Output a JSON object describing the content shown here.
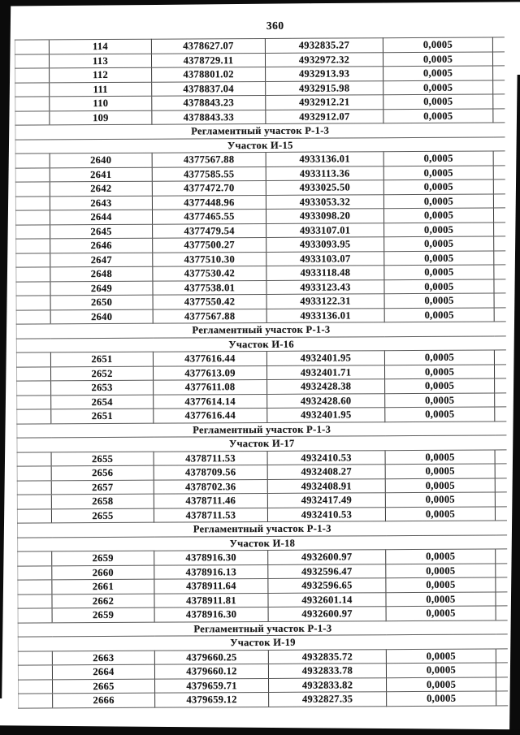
{
  "page": {
    "number": "360"
  },
  "colors": {
    "ink": "#161616",
    "grid_line": "#595959",
    "column_line": "#383838",
    "faint_outer_line": "#b4b4b4",
    "scan_edge_black": "#0b0b0b",
    "paper": "#ffffff"
  },
  "table": {
    "sections": [
      {
        "type": "rows",
        "rows": [
          [
            "114",
            "4378627.07",
            "4932835.27",
            "0,0005"
          ],
          [
            "113",
            "4378729.11",
            "4932972.32",
            "0,0005"
          ],
          [
            "112",
            "4378801.02",
            "4932913.93",
            "0,0005"
          ],
          [
            "111",
            "4378837.04",
            "4932915.98",
            "0,0005"
          ],
          [
            "110",
            "4378843.23",
            "4932912.21",
            "0,0005"
          ],
          [
            "109",
            "4378843.33",
            "4932912.07",
            "0,0005"
          ]
        ]
      },
      {
        "type": "header",
        "label": "Регламентный участок Р-1-3"
      },
      {
        "type": "header",
        "label": "Участок И-15"
      },
      {
        "type": "rows",
        "rows": [
          [
            "2640",
            "4377567.88",
            "4933136.01",
            "0,0005"
          ],
          [
            "2641",
            "4377585.55",
            "4933113.36",
            "0,0005"
          ],
          [
            "2642",
            "4377472.70",
            "4933025.50",
            "0,0005"
          ],
          [
            "2643",
            "4377448.96",
            "4933053.32",
            "0,0005"
          ],
          [
            "2644",
            "4377465.55",
            "4933098.20",
            "0,0005"
          ],
          [
            "2645",
            "4377479.54",
            "4933107.01",
            "0,0005"
          ],
          [
            "2646",
            "4377500.27",
            "4933093.95",
            "0,0005"
          ],
          [
            "2647",
            "4377510.30",
            "4933103.07",
            "0,0005"
          ],
          [
            "2648",
            "4377530.42",
            "4933118.48",
            "0,0005"
          ],
          [
            "2649",
            "4377538.01",
            "4933123.43",
            "0,0005"
          ],
          [
            "2650",
            "4377550.42",
            "4933122.31",
            "0,0005"
          ],
          [
            "2640",
            "4377567.88",
            "4933136.01",
            "0,0005"
          ]
        ]
      },
      {
        "type": "header",
        "label": "Регламентный участок Р-1-3"
      },
      {
        "type": "header",
        "label": "Участок И-16"
      },
      {
        "type": "rows",
        "rows": [
          [
            "2651",
            "4377616.44",
            "4932401.95",
            "0,0005"
          ],
          [
            "2652",
            "4377613.09",
            "4932401.71",
            "0,0005"
          ],
          [
            "2653",
            "4377611.08",
            "4932428.38",
            "0,0005"
          ],
          [
            "2654",
            "4377614.14",
            "4932428.60",
            "0,0005"
          ],
          [
            "2651",
            "4377616.44",
            "4932401.95",
            "0,0005"
          ]
        ]
      },
      {
        "type": "header",
        "label": "Регламентный участок Р-1-3"
      },
      {
        "type": "header",
        "label": "Участок И-17"
      },
      {
        "type": "rows",
        "rows": [
          [
            "2655",
            "4378711.53",
            "4932410.53",
            "0,0005"
          ],
          [
            "2656",
            "4378709.56",
            "4932408.27",
            "0,0005"
          ],
          [
            "2657",
            "4378702.36",
            "4932408.91",
            "0,0005"
          ],
          [
            "2658",
            "4378711.46",
            "4932417.49",
            "0,0005"
          ],
          [
            "2655",
            "4378711.53",
            "4932410.53",
            "0,0005"
          ]
        ]
      },
      {
        "type": "header",
        "label": "Регламентный участок Р-1-3"
      },
      {
        "type": "header",
        "label": "Участок И-18"
      },
      {
        "type": "rows",
        "rows": [
          [
            "2659",
            "4378916.30",
            "4932600.97",
            "0,0005"
          ],
          [
            "2660",
            "4378916.13",
            "4932596.47",
            "0,0005"
          ],
          [
            "2661",
            "4378911.64",
            "4932596.65",
            "0,0005"
          ],
          [
            "2662",
            "4378911.81",
            "4932601.14",
            "0,0005"
          ],
          [
            "2659",
            "4378916.30",
            "4932600.97",
            "0,0005"
          ]
        ]
      },
      {
        "type": "header",
        "label": "Регламентный участок Р-1-3"
      },
      {
        "type": "header",
        "label": "Участок И-19"
      },
      {
        "type": "rows",
        "rows": [
          [
            "2663",
            "4379660.25",
            "4932835.72",
            "0,0005"
          ],
          [
            "2664",
            "4379660.12",
            "4932833.78",
            "0,0005"
          ],
          [
            "2665",
            "4379659.71",
            "4932833.82",
            "0,0005"
          ],
          [
            "2666",
            "4379659.12",
            "4932827.35",
            "0,0005"
          ]
        ]
      }
    ]
  }
}
